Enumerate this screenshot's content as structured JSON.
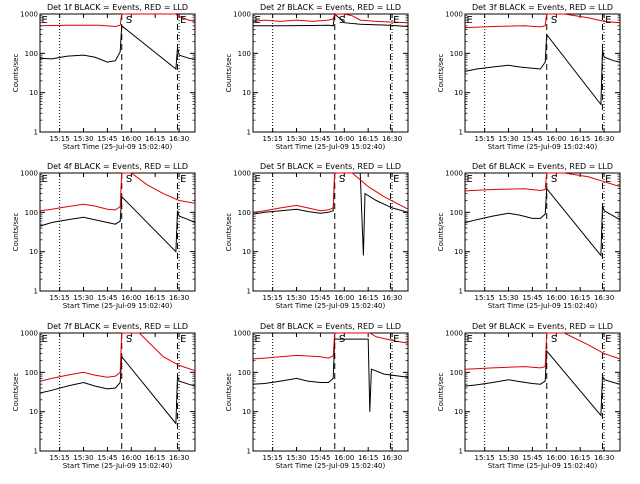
{
  "chart_data": [
    {
      "type": "line",
      "title": "Det 1f BLACK = Events, RED = LLD",
      "xlabel": "Start Time (25-Jul-09 15:02:40)",
      "ylabel": "Counts/sec",
      "yscale": "log",
      "ylim": [
        1,
        1000
      ],
      "ytick_labels": [
        "1",
        "10",
        "100",
        "1000"
      ],
      "xlim": [
        "15:02:40",
        "16:40:00"
      ],
      "xtick_labels": [
        "15:15",
        "15:30",
        "15:45",
        "16:00",
        "16:15",
        "16:30"
      ],
      "dotted_lines": [
        "15:15",
        "16:30"
      ],
      "dashed_lines": [
        "15:54",
        "16:29"
      ],
      "markers": [
        {
          "label": "E",
          "at": "15:03"
        },
        {
          "label": "S",
          "at": "15:56"
        },
        {
          "label": "E",
          "at": "16:30"
        }
      ],
      "series": [
        {
          "name": "BLACK = Events",
          "color": "#000000",
          "x": [
            "15:03",
            "15:10",
            "15:20",
            "15:30",
            "15:37",
            "15:45",
            "15:50",
            "15:53",
            "15:54",
            "16:28",
            "16:29",
            "16:30",
            "16:36",
            "16:40"
          ],
          "y": [
            75,
            72,
            85,
            90,
            80,
            60,
            65,
            110,
            500,
            40,
            140,
            90,
            75,
            70
          ]
        },
        {
          "name": "RED = LLD",
          "color": "#e00000",
          "x": [
            "15:03",
            "15:20",
            "15:40",
            "15:50",
            "15:53",
            "15:54",
            "16:28",
            "16:29",
            "16:36",
            "16:40"
          ],
          "y": [
            500,
            520,
            520,
            480,
            520,
            1000,
            1000,
            900,
            700,
            650
          ]
        }
      ]
    },
    {
      "type": "line",
      "title": "Det 2f BLACK = Events, RED = LLD",
      "xlabel": "Start Time (25-Jul-09 15:02:40)",
      "ylabel": "Counts/sec",
      "yscale": "log",
      "ylim": [
        1,
        1000
      ],
      "ytick_labels": [
        "1",
        "10",
        "100",
        "1000"
      ],
      "xlim": [
        "15:02:40",
        "16:40:00"
      ],
      "xtick_labels": [
        "15:15",
        "15:30",
        "15:45",
        "16:00",
        "16:15",
        "16:30"
      ],
      "dotted_lines": [
        "15:15",
        "16:30"
      ],
      "dashed_lines": [
        "15:54",
        "16:29"
      ],
      "markers": [
        {
          "label": "E",
          "at": "15:03"
        },
        {
          "label": "S",
          "at": "15:56"
        },
        {
          "label": "E",
          "at": "16:30"
        }
      ],
      "series": [
        {
          "name": "BLACK = Events",
          "color": "#000000",
          "x": [
            "15:03",
            "15:20",
            "15:40",
            "15:50",
            "15:53",
            "15:54",
            "16:00",
            "16:10",
            "16:28",
            "16:40"
          ],
          "y": [
            500,
            500,
            510,
            520,
            500,
            1000,
            600,
            550,
            520,
            480
          ]
        },
        {
          "name": "RED = LLD",
          "color": "#e00000",
          "x": [
            "15:03",
            "15:10",
            "15:20",
            "15:30",
            "15:40",
            "15:50",
            "15:53",
            "15:54",
            "16:00",
            "16:05",
            "16:10",
            "16:20",
            "16:40"
          ],
          "y": [
            650,
            700,
            650,
            700,
            650,
            700,
            750,
            1000,
            1000,
            900,
            700,
            650,
            600
          ]
        }
      ]
    },
    {
      "type": "line",
      "title": "Det 3f BLACK = Events, RED = LLD",
      "xlabel": "Start Time (25-Jul-09 15:02:40)",
      "ylabel": "Counts/sec",
      "yscale": "log",
      "ylim": [
        1,
        1000
      ],
      "ytick_labels": [
        "1",
        "10",
        "100",
        "1000"
      ],
      "xlim": [
        "15:02:40",
        "16:40:00"
      ],
      "xtick_labels": [
        "15:15",
        "15:30",
        "15:45",
        "16:00",
        "16:15",
        "16:30"
      ],
      "dotted_lines": [
        "15:15",
        "16:30"
      ],
      "dashed_lines": [
        "15:54",
        "16:29"
      ],
      "markers": [
        {
          "label": "E",
          "at": "15:03"
        },
        {
          "label": "S",
          "at": "15:56"
        },
        {
          "label": "E",
          "at": "16:30"
        }
      ],
      "series": [
        {
          "name": "BLACK = Events",
          "color": "#000000",
          "x": [
            "15:03",
            "15:10",
            "15:20",
            "15:30",
            "15:37",
            "15:45",
            "15:50",
            "15:53",
            "15:54",
            "16:28",
            "16:29",
            "16:30",
            "16:36",
            "16:40"
          ],
          "y": [
            35,
            40,
            45,
            50,
            45,
            42,
            40,
            60,
            300,
            5,
            120,
            80,
            65,
            60
          ]
        },
        {
          "name": "RED = LLD",
          "color": "#e00000",
          "x": [
            "15:03",
            "15:20",
            "15:40",
            "15:50",
            "15:53",
            "15:54",
            "16:05",
            "16:20",
            "16:30",
            "16:40"
          ],
          "y": [
            450,
            480,
            500,
            470,
            500,
            1000,
            1000,
            800,
            650,
            600
          ]
        }
      ]
    },
    {
      "type": "line",
      "title": "Det 4f BLACK = Events, RED = LLD",
      "xlabel": "Start Time (25-Jul-09 15:02:40)",
      "ylabel": "Counts/sec",
      "yscale": "log",
      "ylim": [
        1,
        1000
      ],
      "ytick_labels": [
        "1",
        "10",
        "100",
        "1000"
      ],
      "xlim": [
        "15:02:40",
        "16:40:00"
      ],
      "xtick_labels": [
        "15:15",
        "15:30",
        "15:45",
        "16:00",
        "16:15",
        "16:30"
      ],
      "dotted_lines": [
        "15:15",
        "16:30"
      ],
      "dashed_lines": [
        "15:54",
        "16:29"
      ],
      "markers": [
        {
          "label": "E",
          "at": "15:03"
        },
        {
          "label": "S",
          "at": "15:56"
        },
        {
          "label": "E",
          "at": "16:30"
        }
      ],
      "series": [
        {
          "name": "BLACK = Events",
          "color": "#000000",
          "x": [
            "15:03",
            "15:10",
            "15:20",
            "15:30",
            "15:37",
            "15:45",
            "15:50",
            "15:53",
            "15:54",
            "16:28",
            "16:29",
            "16:30",
            "16:36",
            "16:40"
          ],
          "y": [
            45,
            55,
            65,
            75,
            65,
            55,
            50,
            60,
            250,
            10,
            110,
            80,
            65,
            55
          ]
        },
        {
          "name": "RED = LLD",
          "color": "#e00000",
          "x": [
            "15:03",
            "15:10",
            "15:20",
            "15:30",
            "15:37",
            "15:45",
            "15:50",
            "15:53",
            "15:54",
            "16:00",
            "16:10",
            "16:20",
            "16:30",
            "16:40"
          ],
          "y": [
            110,
            120,
            140,
            160,
            145,
            120,
            115,
            140,
            1000,
            1000,
            500,
            300,
            200,
            170
          ]
        }
      ]
    },
    {
      "type": "line",
      "title": "Det 5f BLACK = Events, RED = LLD",
      "xlabel": "Start Time (25-Jul-09 15:02:40)",
      "ylabel": "Counts/sec",
      "yscale": "log",
      "ylim": [
        1,
        1000
      ],
      "ytick_labels": [
        "1",
        "10",
        "100",
        "1000"
      ],
      "xlim": [
        "15:02:40",
        "16:40:00"
      ],
      "xtick_labels": [
        "15:15",
        "15:30",
        "15:45",
        "16:00",
        "16:15",
        "16:30"
      ],
      "dotted_lines": [
        "15:15",
        "16:30"
      ],
      "dashed_lines": [
        "15:54",
        "16:29"
      ],
      "markers": [
        {
          "label": "E",
          "at": "15:03"
        },
        {
          "label": "S",
          "at": "15:56"
        },
        {
          "label": "E",
          "at": "16:30"
        }
      ],
      "series": [
        {
          "name": "BLACK = Events",
          "color": "#000000",
          "x": [
            "15:03",
            "15:10",
            "15:20",
            "15:30",
            "15:37",
            "15:45",
            "15:50",
            "15:53",
            "15:54",
            "16:10",
            "16:12",
            "16:13",
            "16:20",
            "16:30",
            "16:40"
          ],
          "y": [
            90,
            100,
            110,
            120,
            105,
            95,
            100,
            110,
            1000,
            1000,
            8,
            300,
            200,
            130,
            100
          ]
        },
        {
          "name": "RED = LLD",
          "color": "#e00000",
          "x": [
            "15:03",
            "15:10",
            "15:20",
            "15:30",
            "15:37",
            "15:45",
            "15:50",
            "15:53",
            "15:54",
            "16:05",
            "16:15",
            "16:25",
            "16:40"
          ],
          "y": [
            100,
            110,
            130,
            150,
            130,
            110,
            115,
            130,
            1000,
            1000,
            450,
            250,
            120
          ]
        }
      ]
    },
    {
      "type": "line",
      "title": "Det 6f BLACK = Events, RED = LLD",
      "xlabel": "Start Time (25-Jul-09 15:02:40)",
      "ylabel": "Counts/sec",
      "yscale": "log",
      "ylim": [
        1,
        1000
      ],
      "ytick_labels": [
        "1",
        "10",
        "100",
        "1000"
      ],
      "xlim": [
        "15:02:40",
        "16:40:00"
      ],
      "xtick_labels": [
        "15:15",
        "15:30",
        "15:45",
        "16:00",
        "16:15",
        "16:30"
      ],
      "dotted_lines": [
        "15:15",
        "16:30"
      ],
      "dashed_lines": [
        "15:54",
        "16:29"
      ],
      "markers": [
        {
          "label": "E",
          "at": "15:03"
        },
        {
          "label": "S",
          "at": "15:56"
        },
        {
          "label": "E",
          "at": "16:30"
        }
      ],
      "series": [
        {
          "name": "BLACK = Events",
          "color": "#000000",
          "x": [
            "15:03",
            "15:10",
            "15:20",
            "15:30",
            "15:37",
            "15:45",
            "15:50",
            "15:53",
            "15:54",
            "16:28",
            "16:29",
            "16:30",
            "16:36",
            "16:40"
          ],
          "y": [
            55,
            65,
            80,
            95,
            85,
            70,
            70,
            90,
            400,
            8,
            150,
            110,
            80,
            65
          ]
        },
        {
          "name": "RED = LLD",
          "color": "#e00000",
          "x": [
            "15:03",
            "15:20",
            "15:40",
            "15:50",
            "15:53",
            "15:54",
            "16:05",
            "16:20",
            "16:30",
            "16:40"
          ],
          "y": [
            350,
            380,
            400,
            360,
            380,
            1000,
            1000,
            800,
            600,
            450
          ]
        }
      ]
    },
    {
      "type": "line",
      "title": "Det 7f BLACK = Events, RED = LLD",
      "xlabel": "Start Time (25-Jul-09 15:02:40)",
      "ylabel": "Counts/sec",
      "yscale": "log",
      "ylim": [
        1,
        1000
      ],
      "ytick_labels": [
        "1",
        "10",
        "100",
        "1000"
      ],
      "xlim": [
        "15:02:40",
        "16:40:00"
      ],
      "xtick_labels": [
        "15:15",
        "15:30",
        "15:45",
        "16:00",
        "16:15",
        "16:30"
      ],
      "dotted_lines": [
        "15:15",
        "16:30"
      ],
      "dashed_lines": [
        "15:54",
        "16:29"
      ],
      "markers": [
        {
          "label": "E",
          "at": "15:03"
        },
        {
          "label": "S",
          "at": "15:56"
        },
        {
          "label": "E",
          "at": "16:30"
        }
      ],
      "series": [
        {
          "name": "BLACK = Events",
          "color": "#000000",
          "x": [
            "15:03",
            "15:10",
            "15:20",
            "15:30",
            "15:37",
            "15:45",
            "15:50",
            "15:53",
            "15:54",
            "16:28",
            "16:29",
            "16:30",
            "16:36",
            "16:40"
          ],
          "y": [
            30,
            35,
            45,
            55,
            45,
            38,
            40,
            55,
            250,
            5,
            80,
            60,
            50,
            45
          ]
        },
        {
          "name": "RED = LLD",
          "color": "#e00000",
          "x": [
            "15:03",
            "15:10",
            "15:20",
            "15:30",
            "15:37",
            "15:45",
            "15:50",
            "15:53",
            "15:54",
            "16:05",
            "16:20",
            "16:30",
            "16:40"
          ],
          "y": [
            60,
            70,
            85,
            100,
            85,
            75,
            80,
            100,
            1000,
            1000,
            250,
            150,
            110
          ]
        }
      ]
    },
    {
      "type": "line",
      "title": "Det 8f BLACK = Events, RED = LLD",
      "xlabel": "Start Time (25-Jul-09 15:02:40)",
      "ylabel": "Counts/sec",
      "yscale": "log",
      "ylim": [
        1,
        1000
      ],
      "ytick_labels": [
        "1",
        "10",
        "100",
        "1000"
      ],
      "xlim": [
        "15:02:40",
        "16:40:00"
      ],
      "xtick_labels": [
        "15:15",
        "15:30",
        "15:45",
        "16:00",
        "16:15",
        "16:30"
      ],
      "dotted_lines": [
        "15:15",
        "16:30"
      ],
      "dashed_lines": [
        "15:54",
        "16:29"
      ],
      "markers": [
        {
          "label": "E",
          "at": "15:03"
        },
        {
          "label": "S",
          "at": "15:56"
        },
        {
          "label": "E",
          "at": "16:30"
        }
      ],
      "series": [
        {
          "name": "BLACK = Events",
          "color": "#000000",
          "x": [
            "15:03",
            "15:10",
            "15:20",
            "15:30",
            "15:37",
            "15:45",
            "15:50",
            "15:53",
            "15:54",
            "16:15",
            "16:16",
            "16:17",
            "16:25",
            "16:40"
          ],
          "y": [
            50,
            52,
            60,
            70,
            60,
            55,
            55,
            70,
            700,
            700,
            10,
            120,
            90,
            75
          ]
        },
        {
          "name": "RED = LLD",
          "color": "#e00000",
          "x": [
            "15:03",
            "15:10",
            "15:20",
            "15:30",
            "15:37",
            "15:45",
            "15:50",
            "15:53",
            "15:54",
            "16:16",
            "16:20",
            "16:30",
            "16:40"
          ],
          "y": [
            220,
            230,
            250,
            270,
            260,
            250,
            230,
            260,
            1000,
            1000,
            800,
            650,
            550
          ]
        }
      ]
    },
    {
      "type": "line",
      "title": "Det 9f BLACK = Events, RED = LLD",
      "xlabel": "Start Time (25-Jul-09 15:02:40)",
      "ylabel": "Counts/sec",
      "yscale": "log",
      "ylim": [
        1,
        1000
      ],
      "ytick_labels": [
        "1",
        "10",
        "100",
        "1000"
      ],
      "xlim": [
        "15:02:40",
        "16:40:00"
      ],
      "xtick_labels": [
        "15:15",
        "15:30",
        "15:45",
        "16:00",
        "16:15",
        "16:30"
      ],
      "dotted_lines": [
        "15:15",
        "16:30"
      ],
      "dashed_lines": [
        "15:54",
        "16:29"
      ],
      "markers": [
        {
          "label": "E",
          "at": "15:03"
        },
        {
          "label": "S",
          "at": "15:56"
        },
        {
          "label": "E",
          "at": "16:30"
        }
      ],
      "series": [
        {
          "name": "BLACK = Events",
          "color": "#000000",
          "x": [
            "15:03",
            "15:10",
            "15:20",
            "15:30",
            "15:37",
            "15:45",
            "15:50",
            "15:53",
            "15:54",
            "16:28",
            "16:29",
            "16:30",
            "16:36",
            "16:40"
          ],
          "y": [
            45,
            48,
            55,
            65,
            58,
            52,
            50,
            60,
            350,
            8,
            80,
            65,
            55,
            50
          ]
        },
        {
          "name": "RED = LLD",
          "color": "#e00000",
          "x": [
            "15:03",
            "15:20",
            "15:40",
            "15:50",
            "15:53",
            "15:54",
            "16:05",
            "16:20",
            "16:30",
            "16:40"
          ],
          "y": [
            120,
            130,
            140,
            130,
            140,
            1000,
            1000,
            500,
            300,
            220
          ]
        }
      ]
    }
  ]
}
